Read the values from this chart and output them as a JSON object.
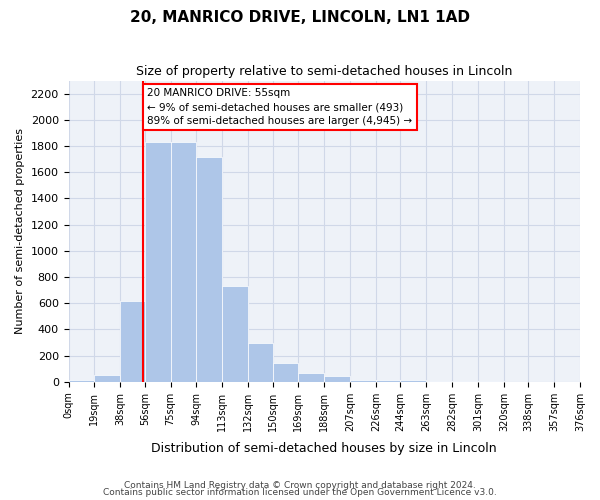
{
  "title": "20, MANRICO DRIVE, LINCOLN, LN1 1AD",
  "subtitle": "Size of property relative to semi-detached houses in Lincoln",
  "xlabel": "Distribution of semi-detached houses by size in Lincoln",
  "ylabel": "Number of semi-detached properties",
  "bar_color": "#aec6e8",
  "grid_color": "#d0d8e8",
  "background_color": "#eef2f8",
  "property_line_x": 55,
  "annotation_text": "20 MANRICO DRIVE: 55sqm\n← 9% of semi-detached houses are smaller (493)\n89% of semi-detached houses are larger (4,945) →",
  "bin_edges": [
    0,
    19,
    38,
    56,
    75,
    94,
    113,
    132,
    150,
    169,
    188,
    207,
    226,
    244,
    263,
    282,
    301,
    320,
    338,
    357,
    376
  ],
  "bin_labels": [
    "0sqm",
    "19sqm",
    "38sqm",
    "56sqm",
    "75sqm",
    "94sqm",
    "113sqm",
    "132sqm",
    "150sqm",
    "169sqm",
    "188sqm",
    "207sqm",
    "226sqm",
    "244sqm",
    "263sqm",
    "282sqm",
    "301sqm",
    "320sqm",
    "338sqm",
    "357sqm",
    "376sqm"
  ],
  "bar_heights": [
    15,
    55,
    620,
    1830,
    1830,
    1720,
    735,
    300,
    140,
    65,
    45,
    15,
    15,
    10,
    5,
    5,
    3,
    2,
    2,
    1
  ],
  "ylim": [
    0,
    2300
  ],
  "yticks": [
    0,
    200,
    400,
    600,
    800,
    1000,
    1200,
    1400,
    1600,
    1800,
    2000,
    2200
  ],
  "footnote1": "Contains HM Land Registry data © Crown copyright and database right 2024.",
  "footnote2": "Contains public sector information licensed under the Open Government Licence v3.0."
}
